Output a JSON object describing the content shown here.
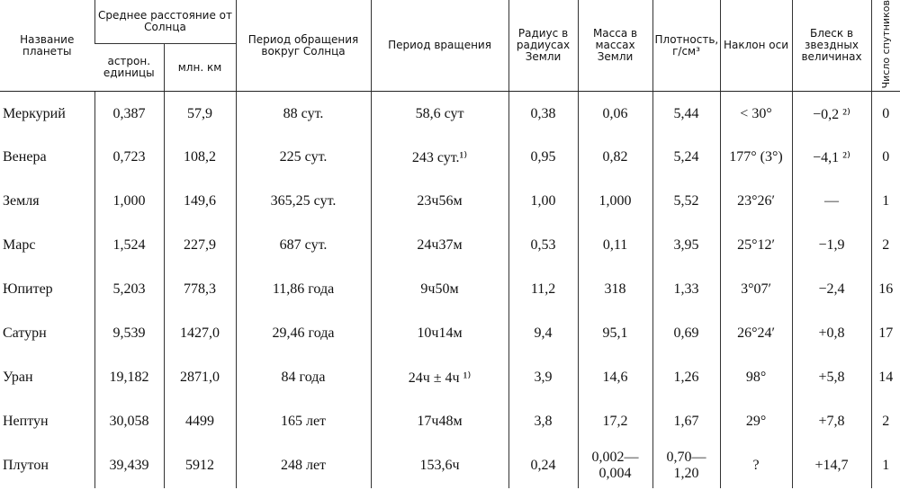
{
  "header": {
    "name": "Название планеты",
    "distance": "Среднее расстояние от Солнца",
    "distance_au": "астрон. единицы",
    "distance_km": "млн. км",
    "columns": [
      "Период обращения вокруг Солнца",
      "Период вращения",
      "Радиус в радиусах Земли",
      "Масса в массах Земли",
      "Плотность, г/см³",
      "Наклон оси",
      "Блеск в звездных величинах",
      "Число спутников"
    ]
  },
  "rows": [
    [
      "Меркурий",
      "0,387",
      "57,9",
      "88 сут.",
      "58,6 сут",
      "0,38",
      "0,06",
      "5,44",
      "< 30°",
      "−0,2 ²⁾",
      "0"
    ],
    [
      "Венера",
      "0,723",
      "108,2",
      "225 сут.",
      "243 сут.¹⁾",
      "0,95",
      "0,82",
      "5,24",
      "177° (3°)",
      "−4,1 ²⁾",
      "0"
    ],
    [
      "Земля",
      "1,000",
      "149,6",
      "365,25 сут.",
      "23ч56м",
      "1,00",
      "1,000",
      "5,52",
      "23°26′",
      "—",
      "1"
    ],
    [
      "Марс",
      "1,524",
      "227,9",
      "687 сут.",
      "24ч37м",
      "0,53",
      "0,11",
      "3,95",
      "25°12′",
      "−1,9",
      "2"
    ],
    [
      "Юпитер",
      "5,203",
      "778,3",
      "11,86 года",
      "9ч50м",
      "11,2",
      "318",
      "1,33",
      "3°07′",
      "−2,4",
      "16"
    ],
    [
      "Сатурн",
      "9,539",
      "1427,0",
      "29,46 года",
      "10ч14м",
      "9,4",
      "95,1",
      "0,69",
      "26°24′",
      "+0,8",
      "17"
    ],
    [
      "Уран",
      "19,182",
      "2871,0",
      "84 года",
      "24ч ± 4ч ¹⁾",
      "3,9",
      "14,6",
      "1,26",
      "98°",
      "+5,8",
      "14"
    ],
    [
      "Нептун",
      "30,058",
      "4499",
      "165 лет",
      "17ч48м",
      "3,8",
      "17,2",
      "1,67",
      "29°",
      "+7,8",
      "2"
    ],
    [
      "Плутон",
      "39,439",
      "5912",
      "248 лет",
      "153,6ч",
      "0,24",
      "0,002—0,004",
      "0,70—1,20",
      "?",
      "+14,7",
      "1"
    ]
  ]
}
